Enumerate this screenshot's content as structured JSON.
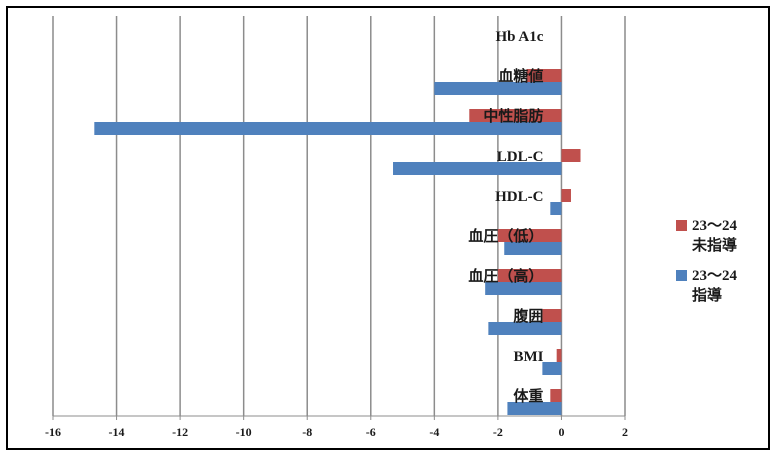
{
  "chart_data": {
    "type": "bar",
    "orientation": "horizontal",
    "categories": [
      "Hb A1c",
      "血糖値",
      "中性脂肪",
      "LDL-C",
      "HDL-C",
      "血圧（低）",
      "血圧（高）",
      "腹囲",
      "BMI",
      "体重"
    ],
    "series": [
      {
        "name": "23～24未指導",
        "legend_lines": [
          "23～24",
          "未指導"
        ],
        "color": "#c0504d",
        "values": [
          0,
          -1.1,
          -2.9,
          0.6,
          0.3,
          -2.0,
          -2.0,
          -0.6,
          -0.15,
          -0.35
        ]
      },
      {
        "name": "23～24指導",
        "legend_lines": [
          "23～24",
          "指導"
        ],
        "color": "#4f81bd",
        "values": [
          0,
          -4.0,
          -14.7,
          -5.3,
          -0.35,
          -1.8,
          -2.4,
          -2.3,
          -0.6,
          -1.7
        ]
      }
    ],
    "xlim": [
      -16,
      2
    ],
    "xticks": [
      "-16",
      "-14",
      "-12",
      "-10",
      "-8",
      "-6",
      "-4",
      "-2",
      "0",
      "2"
    ],
    "grid": true,
    "legend_position": "right"
  }
}
